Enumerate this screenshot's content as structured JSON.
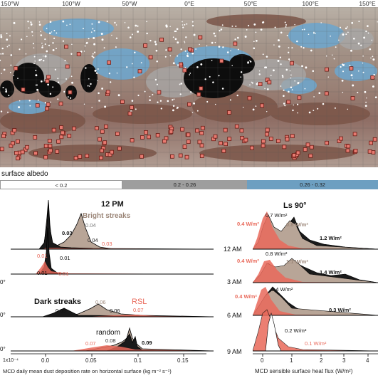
{
  "map": {
    "lon_labels": [
      "150°W",
      "100°W",
      "50°W",
      "0°E",
      "50°E",
      "100°E",
      "150°E"
    ]
  },
  "legend": {
    "title": "surface albedo",
    "bins": [
      {
        "label": "< 0.2",
        "color": "#ffffff"
      },
      {
        "label": "0.2 - 0.26",
        "color": "#9e9e9e"
      },
      {
        "label": "0.26 - 0.32",
        "color": "#6d9fc1"
      }
    ]
  },
  "left_panel": {
    "title": "12 PM",
    "series_labels": {
      "bright": "Bright streaks",
      "dark": "Dark streaks",
      "rsl": "RSL",
      "random": "random"
    },
    "peak_labels": {
      "row1": [
        "0.03",
        "0.04",
        "0.04",
        "0.03"
      ],
      "row2": [
        "0.01",
        "0.01",
        "0.01",
        "0.01"
      ],
      "row3": [
        "0.05",
        "0.06",
        "0.06",
        "0.07"
      ],
      "row4": [
        "0.07",
        "0.08",
        "0.09"
      ]
    },
    "row_edge_labels": [
      "0°",
      "0°",
      "0°"
    ],
    "scale_label": "1x10⁻⁴",
    "x_ticks": [
      "0.0",
      "0.05",
      "0.1",
      "0.15"
    ],
    "xlabel": "MCD daily mean dust deposition rate on horizontal surface (kg m⁻² s⁻¹)"
  },
  "right_panel": {
    "title": "Ls 90°",
    "time_labels": [
      "12 AM",
      "3 AM",
      "6 AM",
      "9 AM"
    ],
    "value_labels": {
      "row1": [
        "0.4 W/m²",
        "0.7 W/m²",
        "0.8 W/m²",
        "1.2 W/m²"
      ],
      "row2": [
        "0.4 W/m²",
        "0.8 W/m²",
        "1.1 W/m²",
        "1.4 W/m²"
      ],
      "row3": [
        "0.4 W/m²",
        "0.4 W/m²",
        "0.3 W/m²"
      ],
      "row4": [
        "0.2 W/m²",
        "0.1 W/m²"
      ]
    },
    "x_ticks": [
      "0",
      "1",
      "2",
      "3",
      "4"
    ],
    "xlabel": "MCD sensible surface heat flux (W/m²)"
  }
}
